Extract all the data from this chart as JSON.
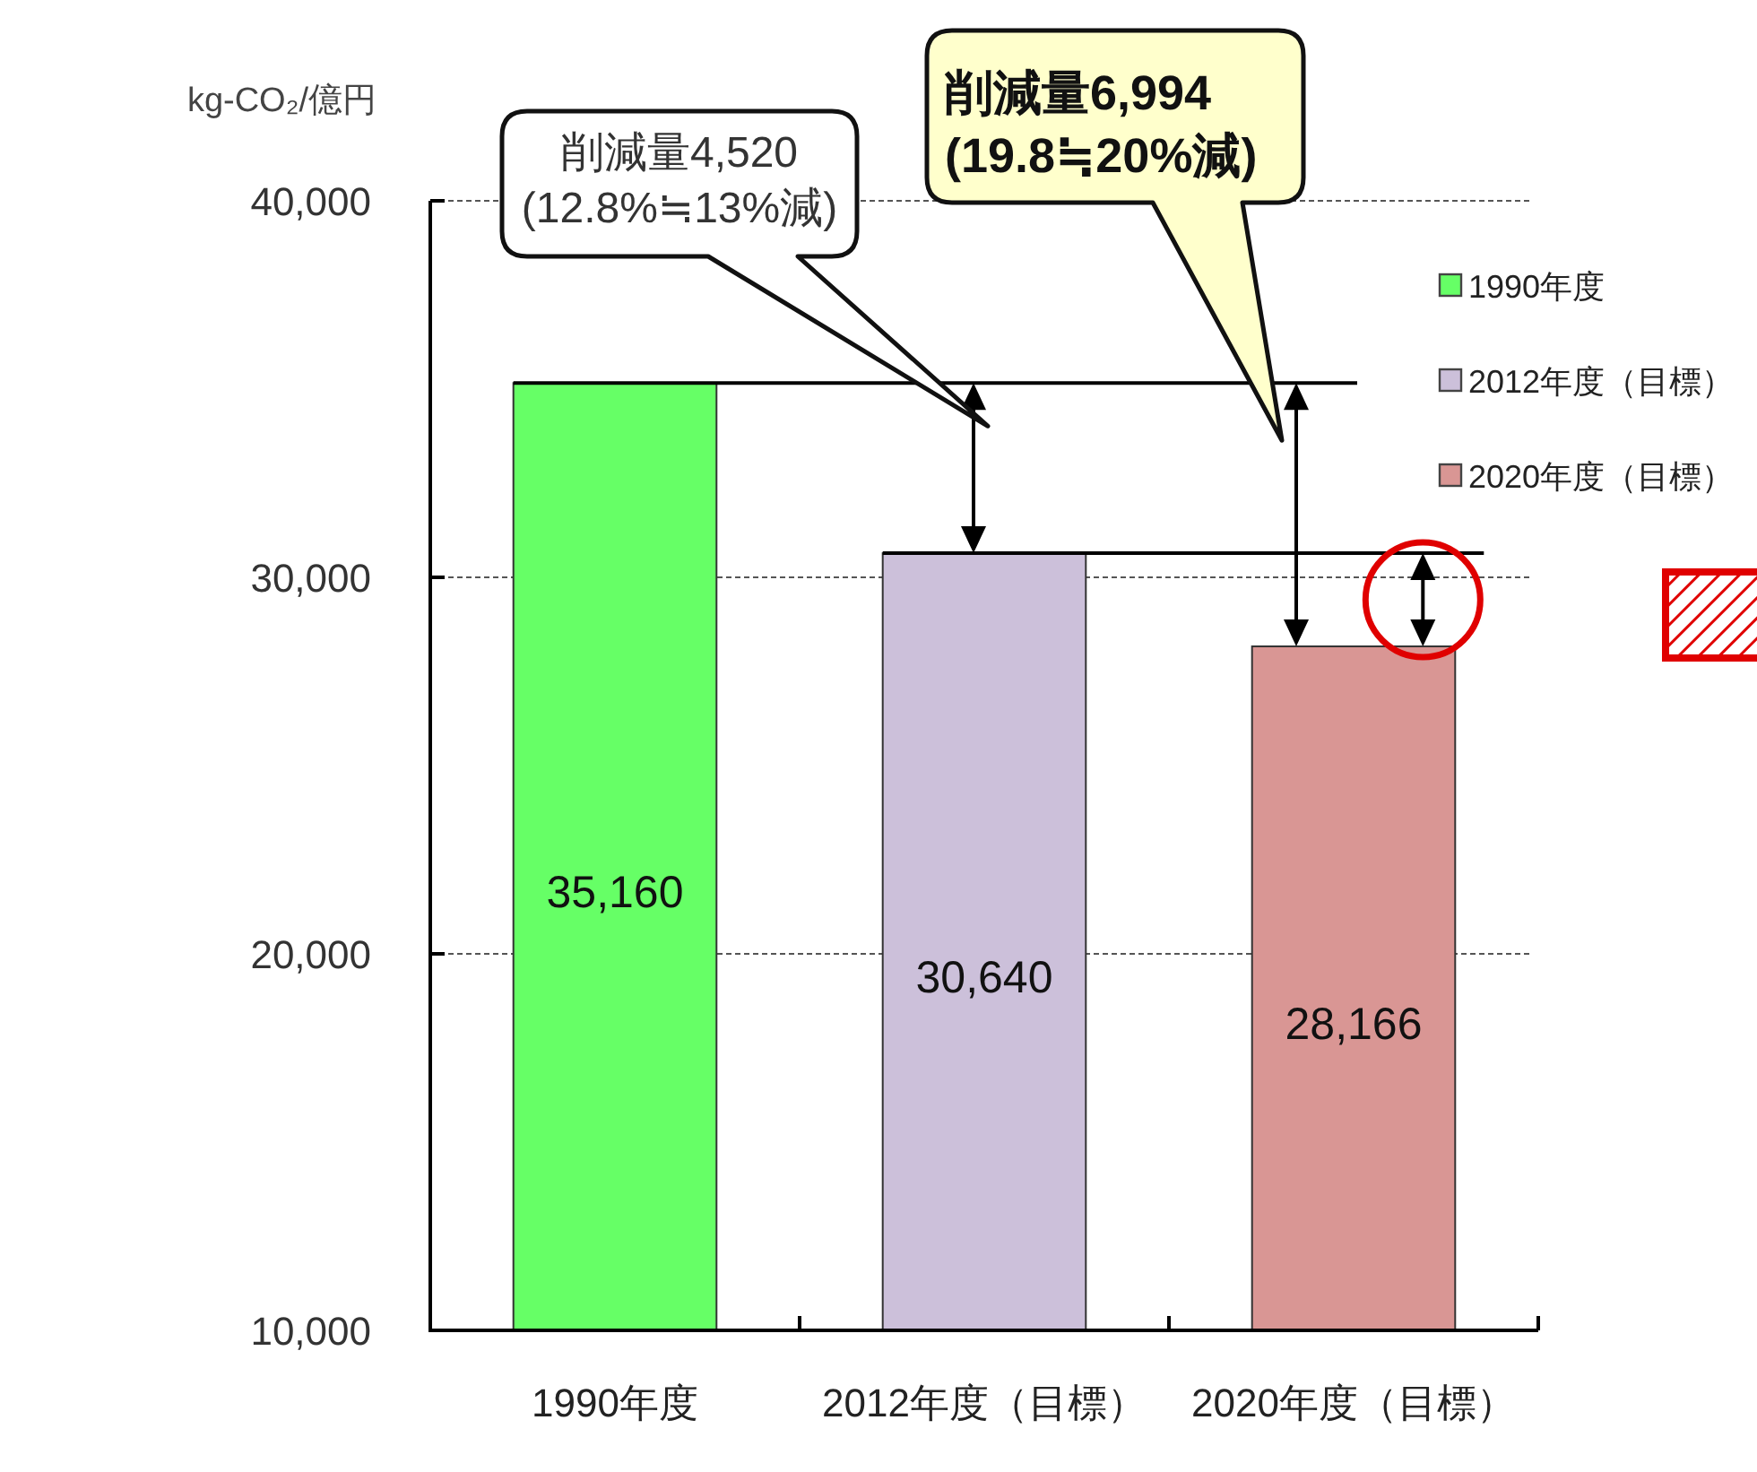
{
  "chart_data": {
    "type": "bar",
    "categories": [
      "1990年度",
      "2012年度（目標）",
      "2020年度（目標）"
    ],
    "series": [
      {
        "name": "1990年度",
        "color": "#66ff66",
        "values": [
          35160,
          null,
          null
        ],
        "value_labels": [
          "35,160",
          null,
          null
        ]
      },
      {
        "name": "2012年度（目標）",
        "color": "#ccc0da",
        "values": [
          null,
          30640,
          null
        ],
        "value_labels": [
          null,
          "30,640",
          null
        ]
      },
      {
        "name": "2020年度（目標）",
        "color": "#d99694",
        "values": [
          null,
          null,
          28166
        ],
        "value_labels": [
          null,
          null,
          "28,166"
        ]
      }
    ],
    "ylabel": "kg-CO₂/億円",
    "ylim": [
      10000,
      40000
    ],
    "yticks": [
      {
        "value": 10000,
        "label": "10,000"
      },
      {
        "value": 20000,
        "label": "20,000"
      },
      {
        "value": 30000,
        "label": "30,000"
      },
      {
        "value": 40000,
        "label": "40,000"
      }
    ],
    "grid": "y",
    "legend": "top right",
    "ref_lines": [
      {
        "axis": "y",
        "value": 35160,
        "color": "#000000"
      },
      {
        "axis": "y",
        "value": 30640,
        "color": "#000000"
      }
    ],
    "annotations": [
      "削減量4,520\n(12.8%≒13%減)",
      "削減量6,994\n(19.8≒20%減)"
    ]
  }
}
